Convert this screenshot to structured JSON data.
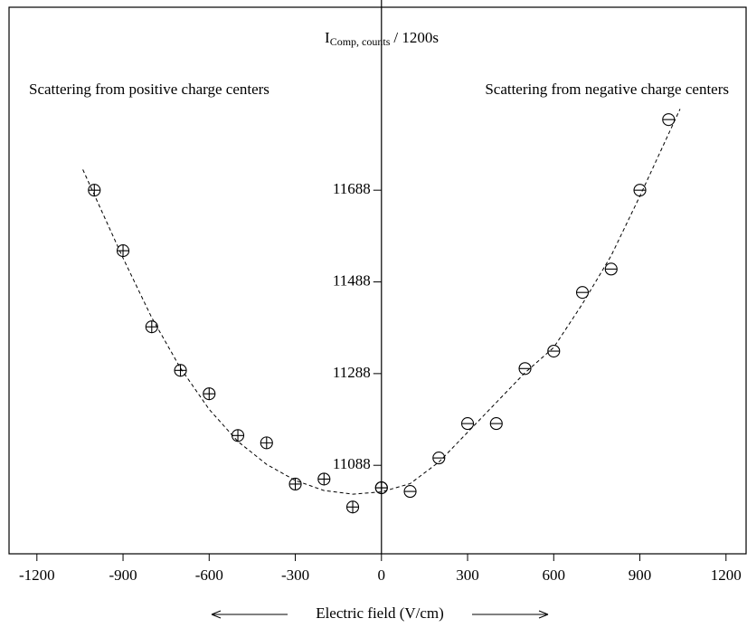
{
  "chart_data": {
    "type": "scatter",
    "y_label": {
      "main": "I",
      "sub": "Comp, counts",
      "rest": "/ 1200s"
    },
    "x_label": "Electric field (V/cm)",
    "annotations": [
      "Scattering from positive charge centers",
      "Scattering from negative charge centers"
    ],
    "xlim": [
      -1297,
      1270
    ],
    "ylim": [
      10895,
      12087
    ],
    "xticks": [
      -1200,
      -900,
      -600,
      -300,
      0,
      300,
      600,
      900,
      1200
    ],
    "yticks": [
      11088,
      11288,
      11488,
      11688
    ],
    "series": [
      {
        "marker": "plus",
        "color": "#000000",
        "x": [
          -1000,
          -900,
          -800,
          -700,
          -600,
          -500,
          -400,
          -300,
          -200,
          -100,
          0
        ],
        "values": [
          11688,
          11556,
          11390,
          11295,
          11244,
          11153,
          11137,
          11047,
          11058,
          10997,
          11039
        ]
      },
      {
        "marker": "minus",
        "color": "#000000",
        "x": [
          0,
          100,
          200,
          300,
          400,
          500,
          600,
          700,
          800,
          900,
          1000
        ],
        "values": [
          11039,
          11031,
          11104,
          11179,
          11179,
          11299,
          11337,
          11465,
          11516,
          11688,
          11842
        ]
      },
      {
        "marker": "dashed-line",
        "color": "#000000",
        "x": [
          -1040,
          -900,
          -800,
          -700,
          -600,
          -500,
          -400,
          -300,
          -200,
          -100,
          0,
          100,
          200,
          300,
          400,
          500,
          600,
          700,
          800,
          900,
          1040
        ],
        "values": [
          11733,
          11540,
          11410,
          11300,
          11210,
          11140,
          11090,
          11055,
          11033,
          11025,
          11030,
          11048,
          11095,
          11160,
          11225,
          11290,
          11345,
          11440,
          11545,
          11675,
          11865
        ]
      }
    ]
  }
}
